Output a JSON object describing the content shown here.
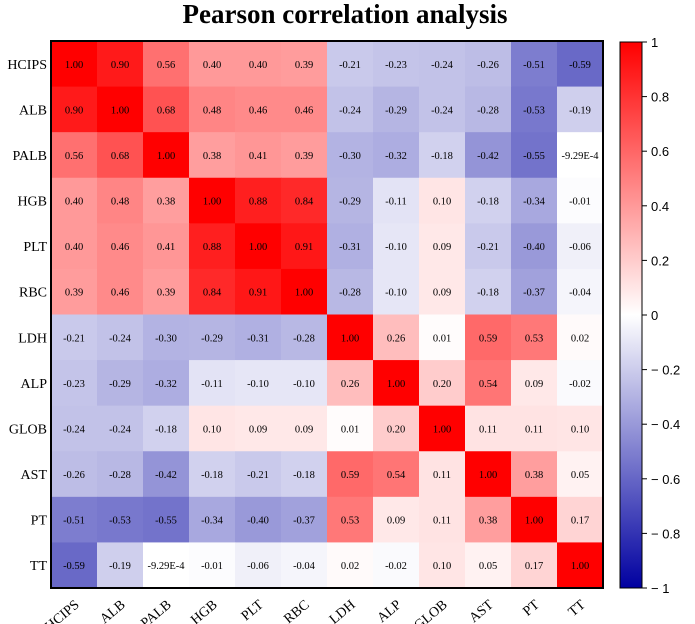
{
  "chart_data": {
    "type": "heatmap",
    "title": "Pearson correlation analysis",
    "row_labels": [
      "HCIPS",
      "ALB",
      "PALB",
      "HGB",
      "PLT",
      "RBC",
      "LDH",
      "ALP",
      "GLOB",
      "AST",
      "PT",
      "TT"
    ],
    "col_labels": [
      "HCIPS",
      "ALB",
      "PALB",
      "HGB",
      "PLT",
      "RBC",
      "LDH",
      "ALP",
      "GLOB",
      "AST",
      "PT",
      "TT"
    ],
    "values": [
      [
        1.0,
        0.9,
        0.56,
        0.4,
        0.4,
        0.39,
        -0.21,
        -0.23,
        -0.24,
        -0.26,
        -0.51,
        -0.59
      ],
      [
        0.9,
        1.0,
        0.68,
        0.48,
        0.46,
        0.46,
        -0.24,
        -0.29,
        -0.24,
        -0.28,
        -0.53,
        -0.19
      ],
      [
        0.56,
        0.68,
        1.0,
        0.38,
        0.41,
        0.39,
        -0.3,
        -0.32,
        -0.18,
        -0.42,
        -0.55,
        -0.000929
      ],
      [
        0.4,
        0.48,
        0.38,
        1.0,
        0.88,
        0.84,
        -0.29,
        -0.11,
        0.1,
        -0.18,
        -0.34,
        -0.01
      ],
      [
        0.4,
        0.46,
        0.41,
        0.88,
        1.0,
        0.91,
        -0.31,
        -0.1,
        0.09,
        -0.21,
        -0.4,
        -0.06
      ],
      [
        0.39,
        0.46,
        0.39,
        0.84,
        0.91,
        1.0,
        -0.28,
        -0.1,
        0.09,
        -0.18,
        -0.37,
        -0.04
      ],
      [
        -0.21,
        -0.24,
        -0.3,
        -0.29,
        -0.31,
        -0.28,
        1.0,
        0.26,
        0.01,
        0.59,
        0.53,
        0.02
      ],
      [
        -0.23,
        -0.29,
        -0.32,
        -0.11,
        -0.1,
        -0.1,
        0.26,
        1.0,
        0.2,
        0.54,
        0.09,
        -0.02
      ],
      [
        -0.24,
        -0.24,
        -0.18,
        0.1,
        0.09,
        0.09,
        0.01,
        0.2,
        1.0,
        0.11,
        0.11,
        0.1
      ],
      [
        -0.26,
        -0.28,
        -0.42,
        -0.18,
        -0.21,
        -0.18,
        0.59,
        0.54,
        0.11,
        1.0,
        0.38,
        0.05
      ],
      [
        -0.51,
        -0.53,
        -0.55,
        -0.34,
        -0.4,
        -0.37,
        0.53,
        0.09,
        0.11,
        0.38,
        1.0,
        0.17
      ],
      [
        -0.59,
        -0.19,
        -0.000929,
        -0.01,
        -0.06,
        -0.04,
        0.02,
        -0.02,
        0.1,
        0.05,
        0.17,
        1.0
      ]
    ],
    "cell_labels": [
      [
        "1.00",
        "0.90",
        "0.56",
        "0.40",
        "0.40",
        "0.39",
        "-0.21",
        "-0.23",
        "-0.24",
        "-0.26",
        "-0.51",
        "-0.59"
      ],
      [
        "0.90",
        "1.00",
        "0.68",
        "0.48",
        "0.46",
        "0.46",
        "-0.24",
        "-0.29",
        "-0.24",
        "-0.28",
        "-0.53",
        "-0.19"
      ],
      [
        "0.56",
        "0.68",
        "1.00",
        "0.38",
        "0.41",
        "0.39",
        "-0.30",
        "-0.32",
        "-0.18",
        "-0.42",
        "-0.55",
        "-9.29E-4"
      ],
      [
        "0.40",
        "0.48",
        "0.38",
        "1.00",
        "0.88",
        "0.84",
        "-0.29",
        "-0.11",
        "0.10",
        "-0.18",
        "-0.34",
        "-0.01"
      ],
      [
        "0.40",
        "0.46",
        "0.41",
        "0.88",
        "1.00",
        "0.91",
        "-0.31",
        "-0.10",
        "0.09",
        "-0.21",
        "-0.40",
        "-0.06"
      ],
      [
        "0.39",
        "0.46",
        "0.39",
        "0.84",
        "0.91",
        "1.00",
        "-0.28",
        "-0.10",
        "0.09",
        "-0.18",
        "-0.37",
        "-0.04"
      ],
      [
        "-0.21",
        "-0.24",
        "-0.30",
        "-0.29",
        "-0.31",
        "-0.28",
        "1.00",
        "0.26",
        "0.01",
        "0.59",
        "0.53",
        "0.02"
      ],
      [
        "-0.23",
        "-0.29",
        "-0.32",
        "-0.11",
        "-0.10",
        "-0.10",
        "0.26",
        "1.00",
        "0.20",
        "0.54",
        "0.09",
        "-0.02"
      ],
      [
        "-0.24",
        "-0.24",
        "-0.18",
        "0.10",
        "0.09",
        "0.09",
        "0.01",
        "0.20",
        "1.00",
        "0.11",
        "0.11",
        "0.10"
      ],
      [
        "-0.26",
        "-0.28",
        "-0.42",
        "-0.18",
        "-0.21",
        "-0.18",
        "0.59",
        "0.54",
        "0.11",
        "1.00",
        "0.38",
        "0.05"
      ],
      [
        "-0.51",
        "-0.53",
        "-0.55",
        "-0.34",
        "-0.40",
        "-0.37",
        "0.53",
        "0.09",
        "0.11",
        "0.38",
        "1.00",
        "0.17"
      ],
      [
        "-0.59",
        "-0.19",
        "-9.29E-4",
        "-0.01",
        "-0.06",
        "-0.04",
        "0.02",
        "-0.02",
        "0.10",
        "0.05",
        "0.17",
        "1.00"
      ]
    ],
    "colorbar": {
      "range": [
        -1,
        1
      ],
      "ticks": [
        1,
        0.8,
        0.6,
        0.4,
        0.2,
        0,
        -0.2,
        -0.4,
        -0.6,
        -0.8,
        -1
      ],
      "tick_labels": [
        "1",
        "0.8",
        "0.6",
        "0.4",
        "0.2",
        "0",
        "− 0.2",
        "− 0.4",
        "− 0.6",
        "− 0.8",
        "− 1"
      ],
      "colors": {
        "low": "#0000a0",
        "mid": "#ffffff",
        "high": "#ff0000"
      }
    },
    "legend_placement": "right",
    "grid": false
  }
}
